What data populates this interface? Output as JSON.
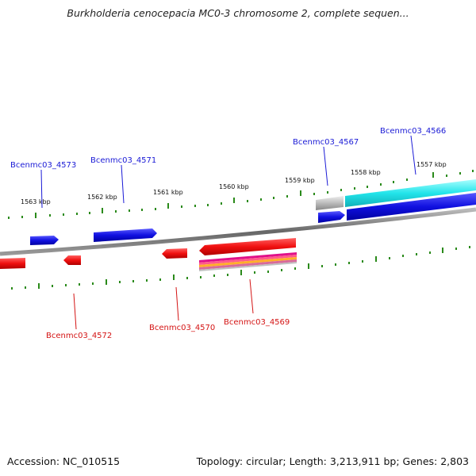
{
  "title": "Burkholderia cenocepacia MC0-3 chromosome 2, complete sequen...",
  "footer": {
    "accession": "Accession: NC_010515",
    "summary": "Topology: circular; Length: 3,213,911 bp; Genes: 2,803"
  },
  "colors": {
    "forward_gene": "#1a1ad6",
    "reverse_gene": "#e01010",
    "tick": "#2a8a1a",
    "backbone": "#777777",
    "cyan_feature": "#22e0e6",
    "gray_feature": "#b8b8b8"
  },
  "scale_labels": [
    "1563 kbp",
    "1562 kbp",
    "1561 kbp",
    "1560 kbp",
    "1559 kbp",
    "1558 kbp",
    "1557 kbp"
  ],
  "gene_labels": {
    "top": [
      "Bcenmc03_4573",
      "Bcenmc03_4571",
      "Bcenmc03_4567",
      "Bcenmc03_4566"
    ],
    "bottom": [
      "Bcenmc03_4572",
      "Bcenmc03_4570",
      "Bcenmc03_4569"
    ]
  }
}
